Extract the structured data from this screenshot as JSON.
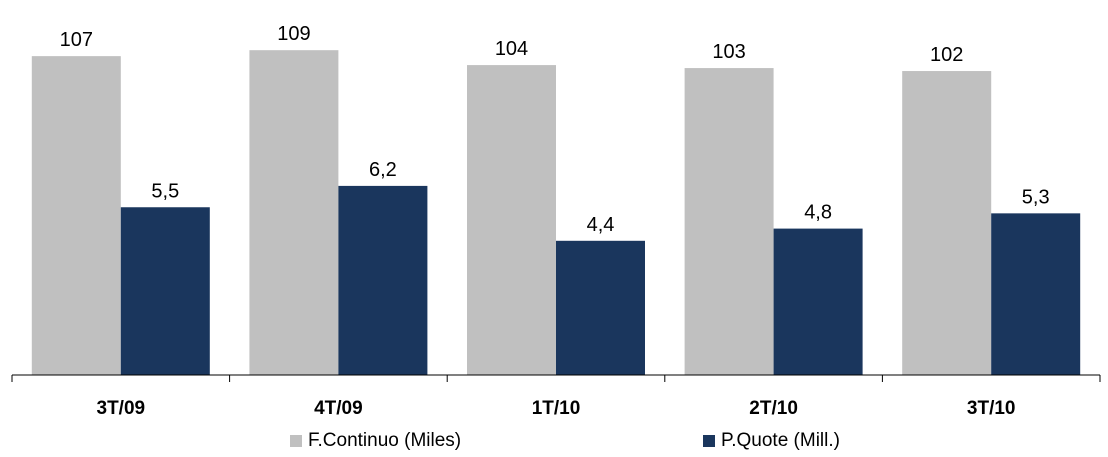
{
  "chart_data": {
    "type": "bar",
    "categories": [
      "3T/09",
      "4T/09",
      "1T/10",
      "2T/10",
      "3T/10"
    ],
    "series": [
      {
        "name": "F.Continuo (Miles)",
        "values": [
          107,
          109,
          104,
          103,
          102
        ],
        "labels": [
          "107",
          "109",
          "104",
          "103",
          "102"
        ],
        "color": "#c0c0c0"
      },
      {
        "name": "P.Quote (Mill.)",
        "values": [
          5.5,
          6.2,
          4.4,
          4.8,
          5.3
        ],
        "labels": [
          "5,5",
          "6,2",
          "4,4",
          "4,8",
          "5,3"
        ],
        "color": "#1a365d"
      }
    ],
    "legend": "bottom",
    "grid": false
  }
}
